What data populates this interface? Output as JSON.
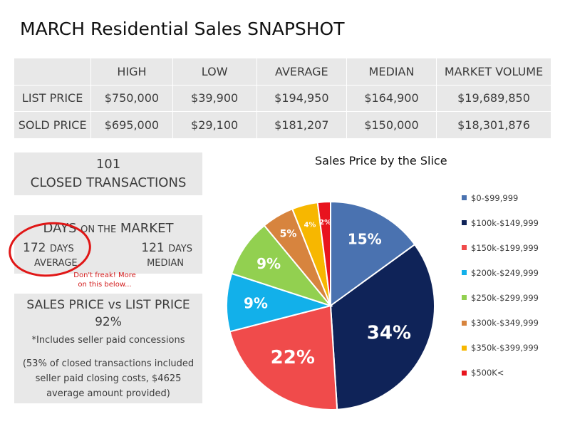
{
  "title": "MARCH Residential Sales SNAPSHOT",
  "stats_table": {
    "headers": [
      "",
      "HIGH",
      "LOW",
      "AVERAGE",
      "MEDIAN",
      "MARKET VOLUME"
    ],
    "rows": [
      [
        "LIST PRICE",
        "$750,000",
        "$39,900",
        "$194,950",
        "$164,900",
        "$19,689,850"
      ],
      [
        "SOLD PRICE",
        "$695,000",
        "$29,100",
        "$181,207",
        "$150,000",
        "$18,301,876"
      ]
    ]
  },
  "closed": {
    "count": "101",
    "label": "CLOSED TRANSACTIONS"
  },
  "dom": {
    "head_big1": "DAYS",
    "head_small": "ON THE",
    "head_big2": "MARKET",
    "avg_value": "172",
    "avg_unit": "DAYS",
    "avg_label": "AVERAGE",
    "med_value": "121",
    "med_unit": "DAYS",
    "med_label": "MEDIAN",
    "note": "Don't freak! More on this below..."
  },
  "ratio": {
    "title": "SALES PRICE  vs  LIST PRICE",
    "value": "92%",
    "footnote": "*Includes seller paid concessions",
    "detail": "(53% of closed transactions included seller paid closing costs, $4625 average amount provided)"
  },
  "chart_data": {
    "type": "pie",
    "title": "Sales Price by the Slice",
    "categories": [
      "$0-$99,999",
      "$100k-$149,999",
      "$150k-$199,999",
      "$200k-$249,999",
      "$250k-$299,999",
      "$300k-$349,999",
      "$350k-$399,999",
      "$500K<"
    ],
    "values": [
      15,
      34,
      22,
      9,
      9,
      5,
      4,
      2
    ],
    "labels": [
      "15%",
      "34%",
      "22%",
      "9%",
      "9%",
      "5%",
      "4%",
      "2%"
    ],
    "colors": [
      "#4a72b0",
      "#0f2358",
      "#f04b4b",
      "#12b0ea",
      "#92d050",
      "#d7843e",
      "#f7b700",
      "#e8141e"
    ],
    "legend_position": "right"
  }
}
